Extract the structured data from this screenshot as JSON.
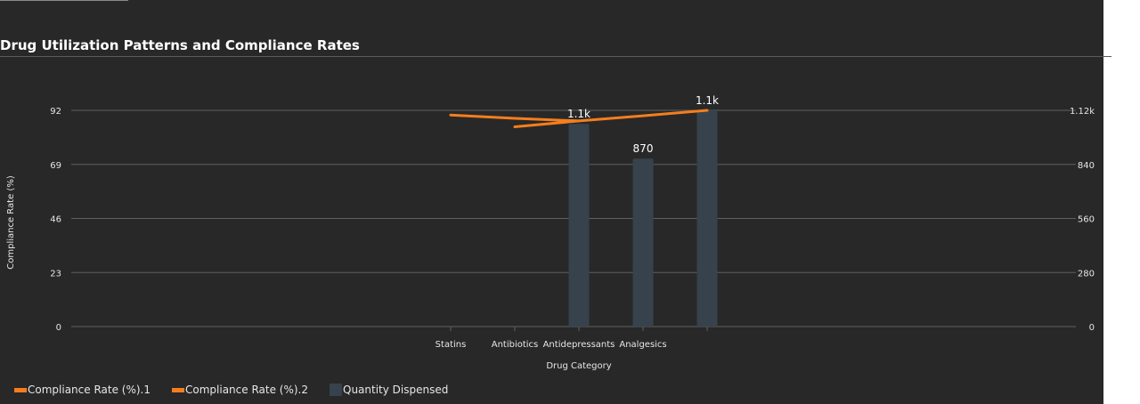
{
  "colors": {
    "background": "#282828",
    "bar": "#37424c",
    "line": "#f47e1e",
    "grid": "#5f5f5f",
    "text": "#e6e6e6"
  },
  "chart_data": {
    "type": "bar+line",
    "title": "Drug Utilization Patterns and Compliance Rates",
    "xlabel": "Drug Category",
    "ylabel": "Compliance Rate (%)",
    "y2label": "",
    "categories": [
      "Statins",
      "Antibiotics",
      "Antidepressants",
      "Analgesics",
      ""
    ],
    "left_axis": {
      "ticks": [
        "0",
        "23",
        "46",
        "69",
        "92"
      ],
      "range": [
        0,
        92
      ]
    },
    "right_axis": {
      "ticks": [
        "0",
        "280",
        "560",
        "840",
        "1.12k"
      ],
      "range": [
        0,
        1120
      ]
    },
    "grid": true,
    "legend_position": "bottom-left",
    "bars": {
      "name": "Quantity Dispensed",
      "axis": "right",
      "values": [
        null,
        null,
        1050,
        870,
        1120
      ],
      "labels": [
        null,
        null,
        "1.1k",
        "870",
        "1.1k"
      ]
    },
    "lines": [
      {
        "name": "Compliance Rate (%).1",
        "axis": "left",
        "values": [
          90,
          88.6,
          87.5,
          89.7,
          92
        ]
      },
      {
        "name": "Compliance Rate (%).2",
        "axis": "left",
        "values": [
          null,
          85,
          87.5,
          null,
          null
        ]
      }
    ]
  }
}
